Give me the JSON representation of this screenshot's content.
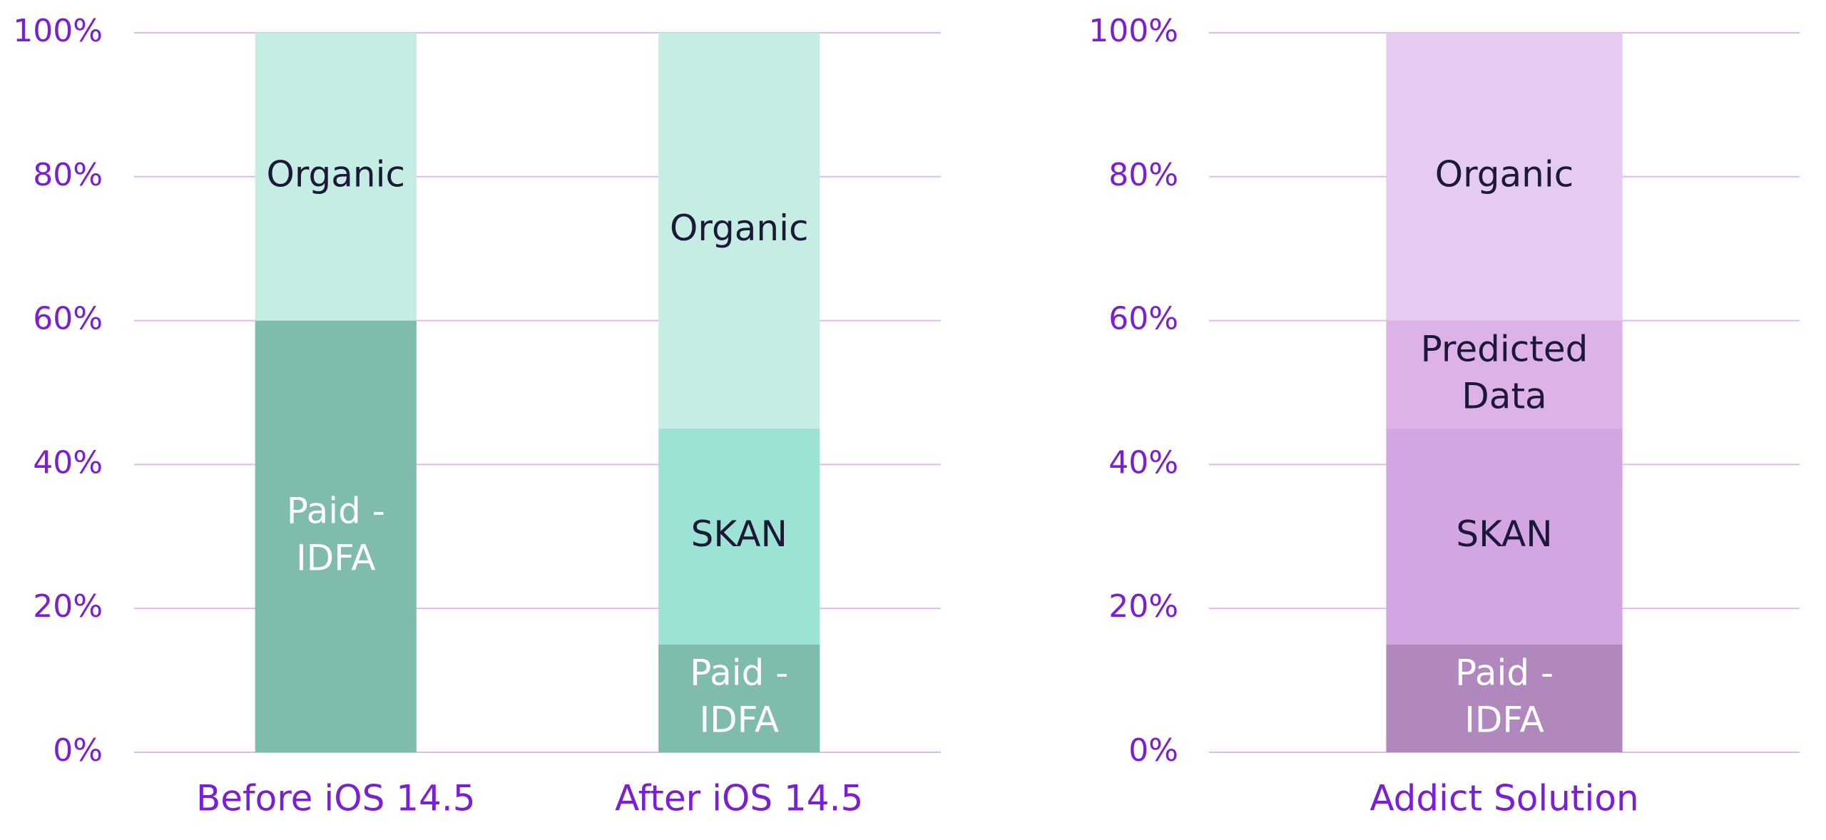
{
  "chart_data": [
    {
      "type": "bar",
      "stacked": true,
      "grid": true,
      "categories": [
        "Before iOS 14.5",
        "After iOS 14.5"
      ],
      "series": [
        {
          "name": "Paid - IDFA",
          "color": "#7fbcad",
          "label_color": "#ffffff",
          "values": [
            60,
            15
          ]
        },
        {
          "name": "SKAN",
          "color": "#9de3d5",
          "label_color": "#1b1838",
          "values": [
            null,
            30
          ]
        },
        {
          "name": "Organic",
          "color": "#c5ede4",
          "label_color": "#1b1838",
          "values": [
            40,
            55
          ]
        }
      ],
      "ylim": [
        0,
        100
      ],
      "yticks": [
        {
          "value": 0,
          "label": "0%"
        },
        {
          "value": 20,
          "label": "20%"
        },
        {
          "value": 40,
          "label": "40%"
        },
        {
          "value": 60,
          "label": "60%"
        },
        {
          "value": 80,
          "label": "80%"
        },
        {
          "value": 100,
          "label": "100%"
        }
      ]
    },
    {
      "type": "bar",
      "stacked": true,
      "grid": true,
      "categories": [
        "Addict Solution"
      ],
      "series": [
        {
          "name": "Paid - IDFA",
          "color": "#b088be",
          "label_color": "#ffffff",
          "values": [
            15
          ]
        },
        {
          "name": "SKAN",
          "color": "#d4a5e3",
          "label_color": "#1b1838",
          "values": [
            30
          ]
        },
        {
          "name": "Predicted Data",
          "color": "#dcb2e8",
          "label_color": "#1b1838",
          "values": [
            15
          ]
        },
        {
          "name": "Organic",
          "color": "#e5caf1",
          "label_color": "#1b1838",
          "values": [
            40
          ]
        }
      ],
      "ylim": [
        0,
        100
      ],
      "yticks": [
        {
          "value": 0,
          "label": "0%"
        },
        {
          "value": 20,
          "label": "20%"
        },
        {
          "value": 40,
          "label": "40%"
        },
        {
          "value": 60,
          "label": "60%"
        },
        {
          "value": 80,
          "label": "80%"
        },
        {
          "value": 100,
          "label": "100%"
        }
      ]
    }
  ]
}
